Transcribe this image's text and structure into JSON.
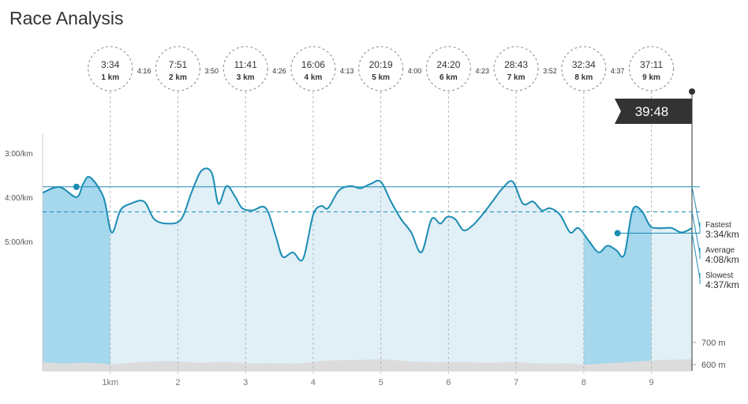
{
  "page": {
    "title": "Race Analysis"
  },
  "chart_data": {
    "type": "area",
    "title": "Race Analysis",
    "x_unit": "km",
    "xlim": [
      0,
      9.6
    ],
    "x_ticks": [
      {
        "x": 1,
        "label": "1km"
      },
      {
        "x": 2,
        "label": "2"
      },
      {
        "x": 3,
        "label": "3"
      },
      {
        "x": 4,
        "label": "4"
      },
      {
        "x": 5,
        "label": "5"
      },
      {
        "x": 6,
        "label": "6"
      },
      {
        "x": 7,
        "label": "7"
      },
      {
        "x": 8,
        "label": "8"
      },
      {
        "x": 9,
        "label": "9"
      }
    ],
    "y_pace_ticks": [
      {
        "value": 3.0,
        "label": "3:00/km"
      },
      {
        "value": 4.0,
        "label": "4:00/km"
      },
      {
        "value": 5.0,
        "label": "5:00/km"
      }
    ],
    "y_pace_lim": [
      0.0,
      7.0
    ],
    "y_elev_ticks": [
      {
        "value": 700,
        "label": "700 m"
      },
      {
        "value": 600,
        "label": "600 m"
      }
    ],
    "y_elev_lim": [
      560,
      760
    ],
    "pace_series": {
      "x": [
        0,
        0.25,
        0.5,
        0.6,
        0.7,
        0.9,
        1.02,
        1.15,
        1.3,
        1.5,
        1.65,
        1.85,
        2.05,
        2.2,
        2.35,
        2.5,
        2.6,
        2.72,
        2.85,
        2.95,
        3.1,
        3.3,
        3.45,
        3.55,
        3.7,
        3.85,
        4.0,
        4.12,
        4.22,
        4.38,
        4.55,
        4.7,
        4.85,
        5.0,
        5.15,
        5.3,
        5.45,
        5.6,
        5.75,
        5.88,
        5.98,
        6.1,
        6.22,
        6.35,
        6.5,
        6.65,
        6.8,
        6.95,
        7.1,
        7.25,
        7.38,
        7.5,
        7.65,
        7.8,
        7.92,
        8.08,
        8.22,
        8.35,
        8.48,
        8.6,
        8.72,
        8.85,
        8.98,
        9.08,
        9.2,
        9.3,
        9.45,
        9.6
      ],
      "pace_min_per_km": [
        3.7,
        3.57,
        3.8,
        3.5,
        3.35,
        3.8,
        4.6,
        4.1,
        3.95,
        3.9,
        4.3,
        4.4,
        4.3,
        3.7,
        3.2,
        3.25,
        3.95,
        3.55,
        3.8,
        4.05,
        4.1,
        4.05,
        4.7,
        5.15,
        5.05,
        5.2,
        4.2,
        4.0,
        4.05,
        3.65,
        3.55,
        3.6,
        3.5,
        3.45,
        3.9,
        4.3,
        4.6,
        5.05,
        4.3,
        4.4,
        4.25,
        4.3,
        4.55,
        4.45,
        4.2,
        3.9,
        3.6,
        3.45,
        3.95,
        3.9,
        4.1,
        4.05,
        4.2,
        4.6,
        4.5,
        4.8,
        5.05,
        4.9,
        5.0,
        5.1,
        4.1,
        4.1,
        4.45,
        4.5,
        4.5,
        4.5,
        4.6,
        4.5
      ]
    },
    "elevation_series": {
      "x": [
        0,
        0.3,
        0.6,
        0.9,
        1.0,
        1.2,
        1.5,
        1.9,
        2.3,
        2.7,
        3.0,
        3.4,
        3.8,
        4.2,
        4.6,
        5.0,
        5.4,
        5.8,
        6.2,
        6.6,
        7.0,
        7.4,
        7.8,
        8.0,
        8.3,
        8.6,
        9.0,
        9.3,
        9.6
      ],
      "meters": [
        612,
        605,
        608,
        604,
        600,
        605,
        612,
        615,
        608,
        612,
        606,
        606,
        605,
        618,
        620,
        624,
        615,
        610,
        612,
        608,
        611,
        604,
        605,
        600,
        605,
        610,
        618,
        622,
        624
      ]
    },
    "highlight_ranges": [
      [
        0,
        1
      ],
      [
        8,
        9
      ]
    ],
    "split_markers": [
      {
        "km": 1,
        "time": "3:34",
        "label": "1 km"
      },
      {
        "km": 2,
        "time": "7:51",
        "label": "2 km"
      },
      {
        "km": 3,
        "time": "11:41",
        "label": "3 km"
      },
      {
        "km": 4,
        "time": "16:06",
        "label": "4 km"
      },
      {
        "km": 5,
        "time": "20:19",
        "label": "5 km"
      },
      {
        "km": 6,
        "time": "24:20",
        "label": "6 km"
      },
      {
        "km": 7,
        "time": "28:43",
        "label": "7 km"
      },
      {
        "km": 8,
        "time": "32:34",
        "label": "8 km"
      },
      {
        "km": 9,
        "time": "37:11",
        "label": "9 km"
      }
    ],
    "km_paces": [
      "4:16",
      "3:50",
      "4:26",
      "4:13",
      "4:00",
      "4:23",
      "3:52",
      "4:37"
    ],
    "finish_time": "39:48",
    "reference_lines": [
      {
        "name": "Fastest",
        "label": "3:34/km",
        "pace": 3.567,
        "style": "solid",
        "marker_x": 0.5
      },
      {
        "name": "Average",
        "label": "4:08/km",
        "pace": 4.133,
        "style": "dashed"
      },
      {
        "name": "Slowest",
        "label": "4:37/km",
        "pace": 4.617,
        "style": "solid",
        "marker_x": 8.5
      }
    ],
    "colors": {
      "line": "#1b8cb4",
      "area_light": "#e1eff7",
      "area_highlight": "#a5d7ed",
      "elevation": "#dcdcdc",
      "finish_badge": "#333333"
    }
  }
}
